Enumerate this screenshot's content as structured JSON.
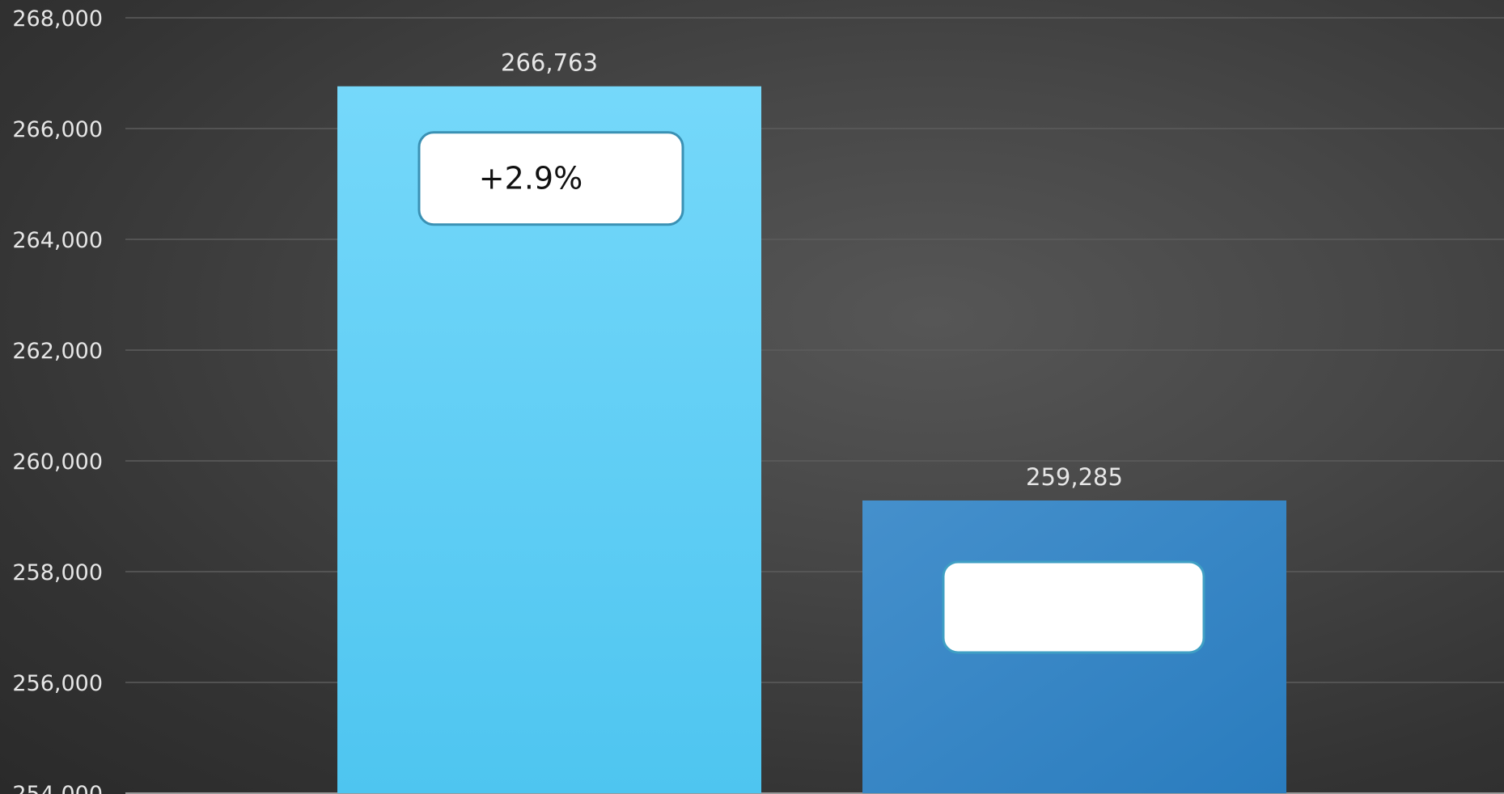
{
  "chart_data": {
    "type": "bar",
    "title": "",
    "xlabel": "",
    "ylabel": "",
    "ylim": [
      254000,
      268000
    ],
    "yticks": [
      254000,
      256000,
      258000,
      260000,
      262000,
      264000,
      266000,
      268000
    ],
    "ytick_labels": [
      "254,000",
      "256,000",
      "258,000",
      "260,000",
      "262,000",
      "264,000",
      "266,000",
      "268,000"
    ],
    "grid": true,
    "series": [
      {
        "values": [
          266763,
          259285
        ],
        "data_labels": [
          "266,763",
          "259,285"
        ],
        "colors": [
          "#5ACBF2",
          "#3088C8"
        ]
      }
    ],
    "annotations": [
      {
        "bar_index": 0,
        "text": "+2.9%"
      },
      {
        "bar_index": 1,
        "text": ""
      }
    ]
  }
}
